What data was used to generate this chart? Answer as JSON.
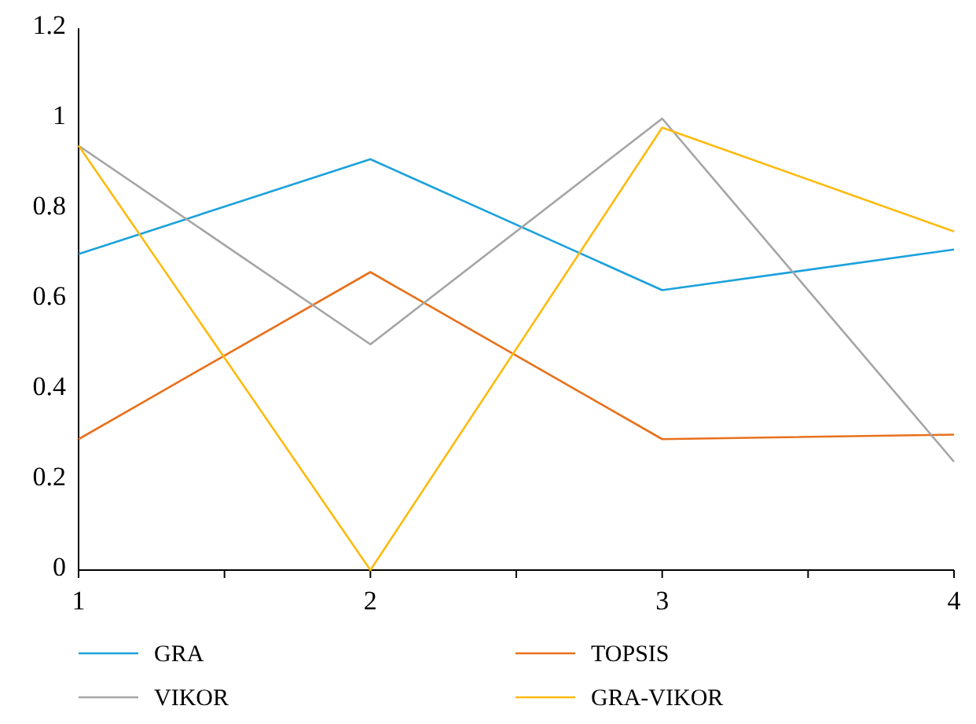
{
  "chart_data": {
    "type": "line",
    "x": [
      1,
      2,
      3,
      4
    ],
    "series": [
      {
        "name": "GRA",
        "color": "#1ba1dc",
        "values": [
          0.7,
          0.91,
          0.62,
          0.71
        ]
      },
      {
        "name": "TOPSIS",
        "color": "#e8711c",
        "values": [
          0.29,
          0.66,
          0.29,
          0.3
        ]
      },
      {
        "name": "VIKOR",
        "color": "#a5a5a5",
        "values": [
          0.94,
          0.5,
          1.0,
          0.24
        ]
      },
      {
        "name": "GRA-VIKOR",
        "color": "#fdbb10",
        "values": [
          0.94,
          0,
          0.98,
          0.75
        ]
      }
    ],
    "xlim": [
      1,
      4
    ],
    "xticks": [
      1,
      {
        "value": 1.5,
        "label": null
      },
      2,
      {
        "value": 2.5,
        "label": null
      },
      3,
      {
        "value": 3.5,
        "label": null
      },
      4
    ],
    "ylim": [
      0,
      1.2
    ],
    "yticks": [
      0,
      0.2,
      0.4,
      0.6,
      0.8,
      1,
      1.2
    ],
    "grid": false,
    "legend": "bottom",
    "marker": "none",
    "line_style": "solid"
  }
}
